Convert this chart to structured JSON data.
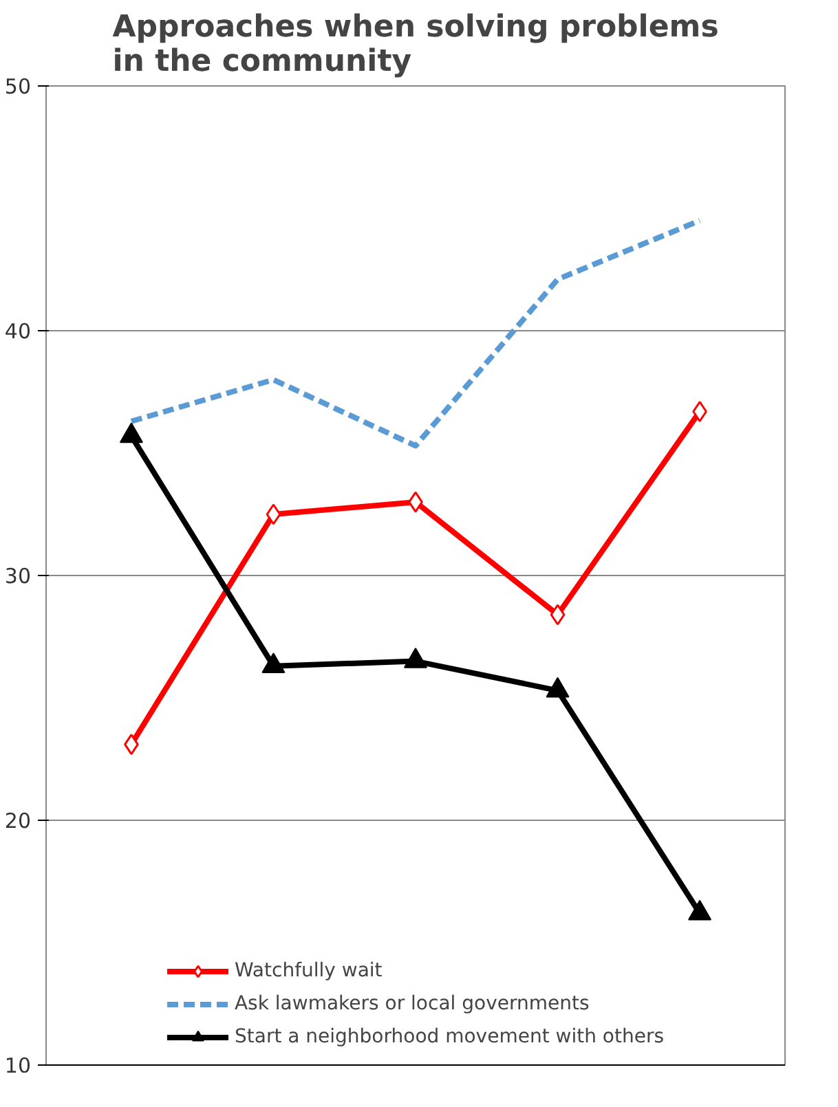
{
  "chart_data": {
    "type": "line",
    "title": "Approaches when solving problems in the community",
    "categories": [
      null,
      null,
      null,
      null,
      null
    ],
    "series": [
      {
        "name": "Watchfully wait",
        "color": "#ff0000",
        "marker": "diamond",
        "line_style": "solid",
        "values": [
          23.1,
          32.5,
          33.0,
          28.4,
          36.7
        ]
      },
      {
        "name": "Ask lawmakers or local governments",
        "color": "#5b9bd5",
        "marker": "none",
        "line_style": "dashed",
        "values": [
          36.3,
          38.0,
          35.3,
          42.1,
          44.5
        ]
      },
      {
        "name": "Start a neighborhood movement with others",
        "color": "#000000",
        "marker": "triangle",
        "line_style": "solid",
        "values": [
          35.7,
          26.3,
          26.5,
          25.3,
          16.2
        ]
      }
    ],
    "ylim": [
      10,
      50
    ],
    "yticks": [
      10,
      20,
      30,
      40,
      50
    ],
    "grid": "y",
    "legend": "bottom",
    "tick_labels": "y"
  }
}
